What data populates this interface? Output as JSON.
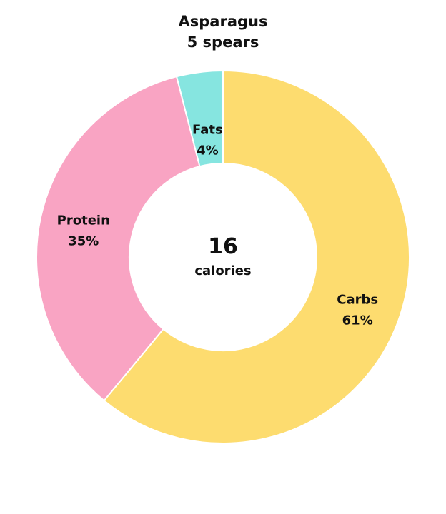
{
  "chart_data": {
    "type": "pie",
    "donut": true,
    "title": "Asparagus",
    "subtitle": "5 spears",
    "center_value": "16",
    "center_label": "calories",
    "start_angle_deg": 0,
    "direction": "clockwise",
    "slices": [
      {
        "name": "Carbs",
        "value": 61,
        "label": "61%",
        "color": "#FDDC6F"
      },
      {
        "name": "Protein",
        "value": 35,
        "label": "35%",
        "color": "#F9A4C3"
      },
      {
        "name": "Fats",
        "value": 4,
        "label": "4%",
        "color": "#86E5E0"
      }
    ],
    "slice_border_color": "#ffffff",
    "legend": "none"
  }
}
